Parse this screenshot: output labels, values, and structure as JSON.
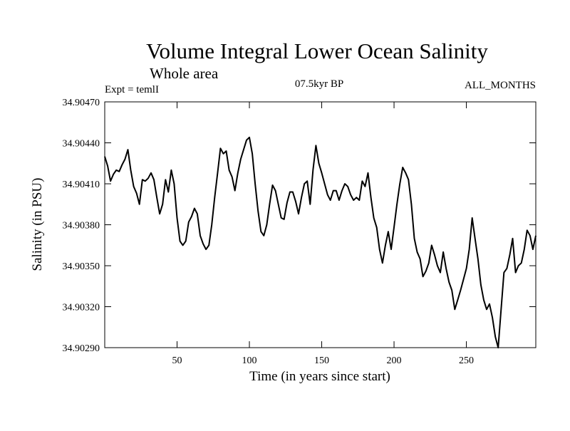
{
  "chart_data": {
    "type": "line",
    "title": "Volume Integral Lower Ocean Salinity",
    "subtitle": "Whole area",
    "expt_label": "Expt = temlI",
    "period_label": "07.5kyr BP",
    "months_label": "ALL_MONTHS",
    "xlabel": "Time (in years since start)",
    "ylabel": "Salinity (in PSU)",
    "xlim": [
      0,
      298
    ],
    "ylim": [
      34.9029,
      34.9047
    ],
    "x_ticks": [
      50,
      100,
      150,
      200,
      250
    ],
    "y_ticks": [
      "34.90290",
      "34.90320",
      "34.90350",
      "34.90380",
      "34.90410",
      "34.90440",
      "34.90470"
    ],
    "grid": false,
    "series": [
      {
        "name": "Salinity",
        "color": "#000000",
        "x": [
          0,
          2,
          4,
          6,
          8,
          10,
          12,
          14,
          16,
          18,
          20,
          22,
          24,
          26,
          28,
          30,
          32,
          34,
          36,
          38,
          40,
          42,
          44,
          46,
          48,
          50,
          52,
          54,
          56,
          58,
          60,
          62,
          64,
          66,
          68,
          70,
          72,
          74,
          76,
          78,
          80,
          82,
          84,
          86,
          88,
          90,
          92,
          94,
          96,
          98,
          100,
          102,
          104,
          106,
          108,
          110,
          112,
          114,
          116,
          118,
          120,
          122,
          124,
          126,
          128,
          130,
          132,
          134,
          136,
          138,
          140,
          142,
          144,
          146,
          148,
          150,
          152,
          154,
          156,
          158,
          160,
          162,
          164,
          166,
          168,
          170,
          172,
          174,
          176,
          178,
          180,
          182,
          184,
          186,
          188,
          190,
          192,
          194,
          196,
          198,
          200,
          202,
          204,
          206,
          208,
          210,
          212,
          214,
          216,
          218,
          220,
          222,
          224,
          226,
          228,
          230,
          232,
          234,
          236,
          238,
          240,
          242,
          244,
          246,
          248,
          250,
          252,
          254,
          256,
          258,
          260,
          262,
          264,
          266,
          268,
          270,
          272,
          274,
          276,
          278,
          280,
          282,
          284,
          286,
          288,
          290,
          292,
          294,
          296,
          298
        ],
        "values": [
          34.9043,
          34.90423,
          34.90412,
          34.90417,
          34.9042,
          34.90419,
          34.90424,
          34.90428,
          34.90435,
          34.9042,
          34.90408,
          34.90403,
          34.90395,
          34.90413,
          34.90412,
          34.90414,
          34.90418,
          34.90413,
          34.904,
          34.90388,
          34.90395,
          34.90413,
          34.90404,
          34.9042,
          34.9041,
          34.90385,
          34.90368,
          34.90365,
          34.90368,
          34.90382,
          34.90386,
          34.90392,
          34.90388,
          34.90372,
          34.90366,
          34.90362,
          34.90365,
          34.9038,
          34.904,
          34.90418,
          34.90436,
          34.90432,
          34.90434,
          34.9042,
          34.90415,
          34.90405,
          34.90418,
          34.90428,
          34.90435,
          34.90442,
          34.90444,
          34.90432,
          34.9041,
          34.9039,
          34.90375,
          34.90372,
          34.9038,
          34.90395,
          34.90409,
          34.90405,
          34.90395,
          34.90385,
          34.90384,
          34.90396,
          34.90404,
          34.90404,
          34.90397,
          34.90388,
          34.904,
          34.9041,
          34.90412,
          34.90395,
          34.9042,
          34.90438,
          34.90425,
          34.90418,
          34.9041,
          34.90402,
          34.90398,
          34.90405,
          34.90405,
          34.90398,
          34.90405,
          34.9041,
          34.90408,
          34.90402,
          34.90398,
          34.904,
          34.90398,
          34.90412,
          34.90408,
          34.90418,
          34.904,
          34.90385,
          34.90378,
          34.90362,
          34.90352,
          34.90365,
          34.90375,
          34.90362,
          34.90378,
          34.90395,
          34.9041,
          34.90422,
          34.90418,
          34.90413,
          34.90395,
          34.9037,
          34.9036,
          34.90355,
          34.90342,
          34.90346,
          34.90352,
          34.90365,
          34.90358,
          34.9035,
          34.90345,
          34.9036,
          34.90348,
          34.90338,
          34.90332,
          34.90318,
          34.90325,
          34.90332,
          34.9034,
          34.90348,
          34.90362,
          34.90385,
          34.9037,
          34.90355,
          34.90336,
          34.90325,
          34.90318,
          34.90322,
          34.90312,
          34.90298,
          34.9029,
          34.90318,
          34.90345,
          34.90348,
          34.90358,
          34.9037,
          34.90345,
          34.9035,
          34.90352,
          34.90362,
          34.90376,
          34.90372,
          34.90362,
          34.90372
        ]
      }
    ]
  }
}
